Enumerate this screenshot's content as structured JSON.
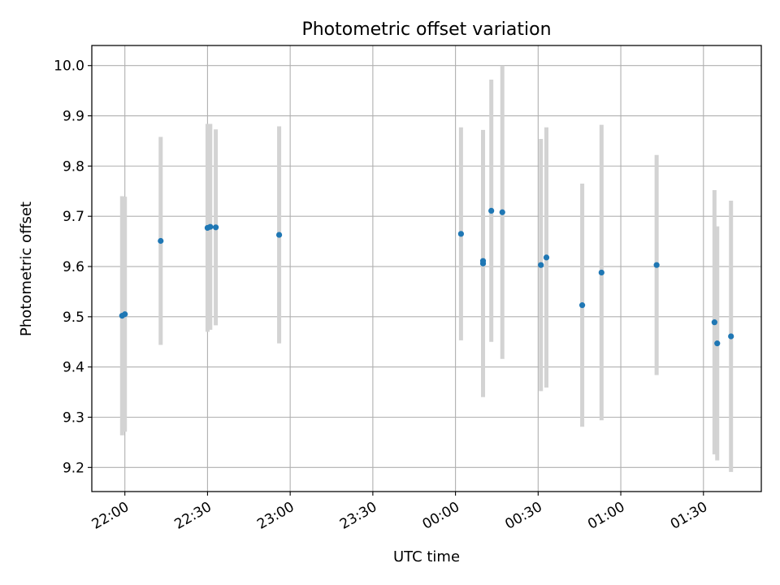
{
  "chart_data": {
    "type": "scatter",
    "title": "Photometric offset variation",
    "xlabel": "UTC time",
    "ylabel": "Photometric offset",
    "x_tick_labels": [
      "22:00",
      "22:30",
      "23:00",
      "23:30",
      "00:00",
      "00:30",
      "01:00",
      "01:30"
    ],
    "x_tick_times": [
      "22:00",
      "22:30",
      "23:00",
      "23:30",
      "24:00",
      "24:30",
      "25:00",
      "25:30"
    ],
    "y_ticks": [
      9.2,
      9.3,
      9.4,
      9.5,
      9.6,
      9.7,
      9.8,
      9.9,
      10.0
    ],
    "y_tick_labels": [
      "9.2",
      "9.3",
      "9.4",
      "9.5",
      "9.6",
      "9.7",
      "9.8",
      "9.9",
      "10.0"
    ],
    "xlim": [
      "21:48",
      "25:51"
    ],
    "ylim": [
      9.152,
      10.04
    ],
    "grid": true,
    "point_color": "#1f77b4",
    "errorbar_color": "#d3d3d3",
    "points": [
      {
        "t": "21:59",
        "y": 9.502,
        "err": 0.238
      },
      {
        "t": "22:00",
        "y": 9.505,
        "err": 0.234
      },
      {
        "t": "22:13",
        "y": 9.651,
        "err": 0.207
      },
      {
        "t": "22:30",
        "y": 9.677,
        "err": 0.207
      },
      {
        "t": "22:31",
        "y": 9.679,
        "err": 0.205
      },
      {
        "t": "22:33",
        "y": 9.678,
        "err": 0.195
      },
      {
        "t": "22:56",
        "y": 9.663,
        "err": 0.216
      },
      {
        "t": "24:02",
        "y": 9.665,
        "err": 0.212
      },
      {
        "t": "24:10",
        "y": 9.606,
        "err": 0.266
      },
      {
        "t": "24:10",
        "y": 9.611,
        "err": 0.249
      },
      {
        "t": "24:13",
        "y": 9.711,
        "err": 0.261
      },
      {
        "t": "24:17",
        "y": 9.708,
        "err": 0.292
      },
      {
        "t": "24:31",
        "y": 9.603,
        "err": 0.251
      },
      {
        "t": "24:33",
        "y": 9.618,
        "err": 0.259
      },
      {
        "t": "24:46",
        "y": 9.523,
        "err": 0.242
      },
      {
        "t": "24:53",
        "y": 9.588,
        "err": 0.294
      },
      {
        "t": "25:13",
        "y": 9.603,
        "err": 0.219
      },
      {
        "t": "25:34",
        "y": 9.489,
        "err": 0.263
      },
      {
        "t": "25:35",
        "y": 9.447,
        "err": 0.233
      },
      {
        "t": "25:40",
        "y": 9.461,
        "err": 0.27
      }
    ]
  }
}
